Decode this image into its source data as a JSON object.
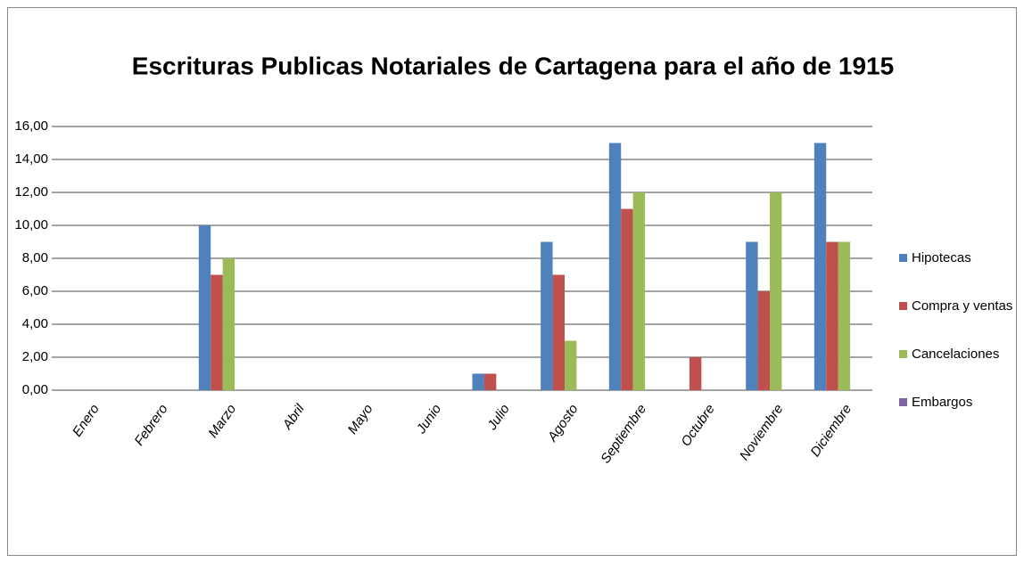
{
  "chart_data": {
    "type": "bar",
    "title": "Escrituras Publicas Notariales de Cartagena para el año de 1915",
    "categories": [
      "Enero",
      "Febrero",
      "Marzo",
      "Abril",
      "Mayo",
      "Junio",
      "Julio",
      "Agosto",
      "Septiembre",
      "Octubre",
      "Noviembre",
      "Diciembre"
    ],
    "series": [
      {
        "name": "Hipotecas",
        "color": "#4F81BD",
        "values": [
          0,
          0,
          10,
          0,
          0,
          0,
          1,
          9,
          15,
          0,
          9,
          15
        ]
      },
      {
        "name": "Compra y ventas",
        "color": "#C0504D",
        "values": [
          0,
          0,
          7,
          0,
          0,
          0,
          1,
          7,
          11,
          2,
          6,
          9
        ]
      },
      {
        "name": "Cancelaciones",
        "color": "#9BBB59",
        "values": [
          0,
          0,
          8,
          0,
          0,
          0,
          0,
          3,
          12,
          0,
          12,
          9
        ]
      },
      {
        "name": "Embargos",
        "color": "#8064A2",
        "values": [
          0,
          0,
          0,
          0,
          0,
          0,
          0,
          0,
          0,
          0,
          0,
          0
        ]
      }
    ],
    "ylim": [
      0,
      16
    ],
    "yticks": [
      {
        "value": 0,
        "label": "0,00"
      },
      {
        "value": 2,
        "label": "2,00"
      },
      {
        "value": 4,
        "label": "4,00"
      },
      {
        "value": 6,
        "label": "6,00"
      },
      {
        "value": 8,
        "label": "8,00"
      },
      {
        "value": 10,
        "label": "10,00"
      },
      {
        "value": 12,
        "label": "12,00"
      },
      {
        "value": 14,
        "label": "14,00"
      },
      {
        "value": 16,
        "label": "16,00"
      }
    ],
    "grid": true,
    "legend": "right"
  }
}
